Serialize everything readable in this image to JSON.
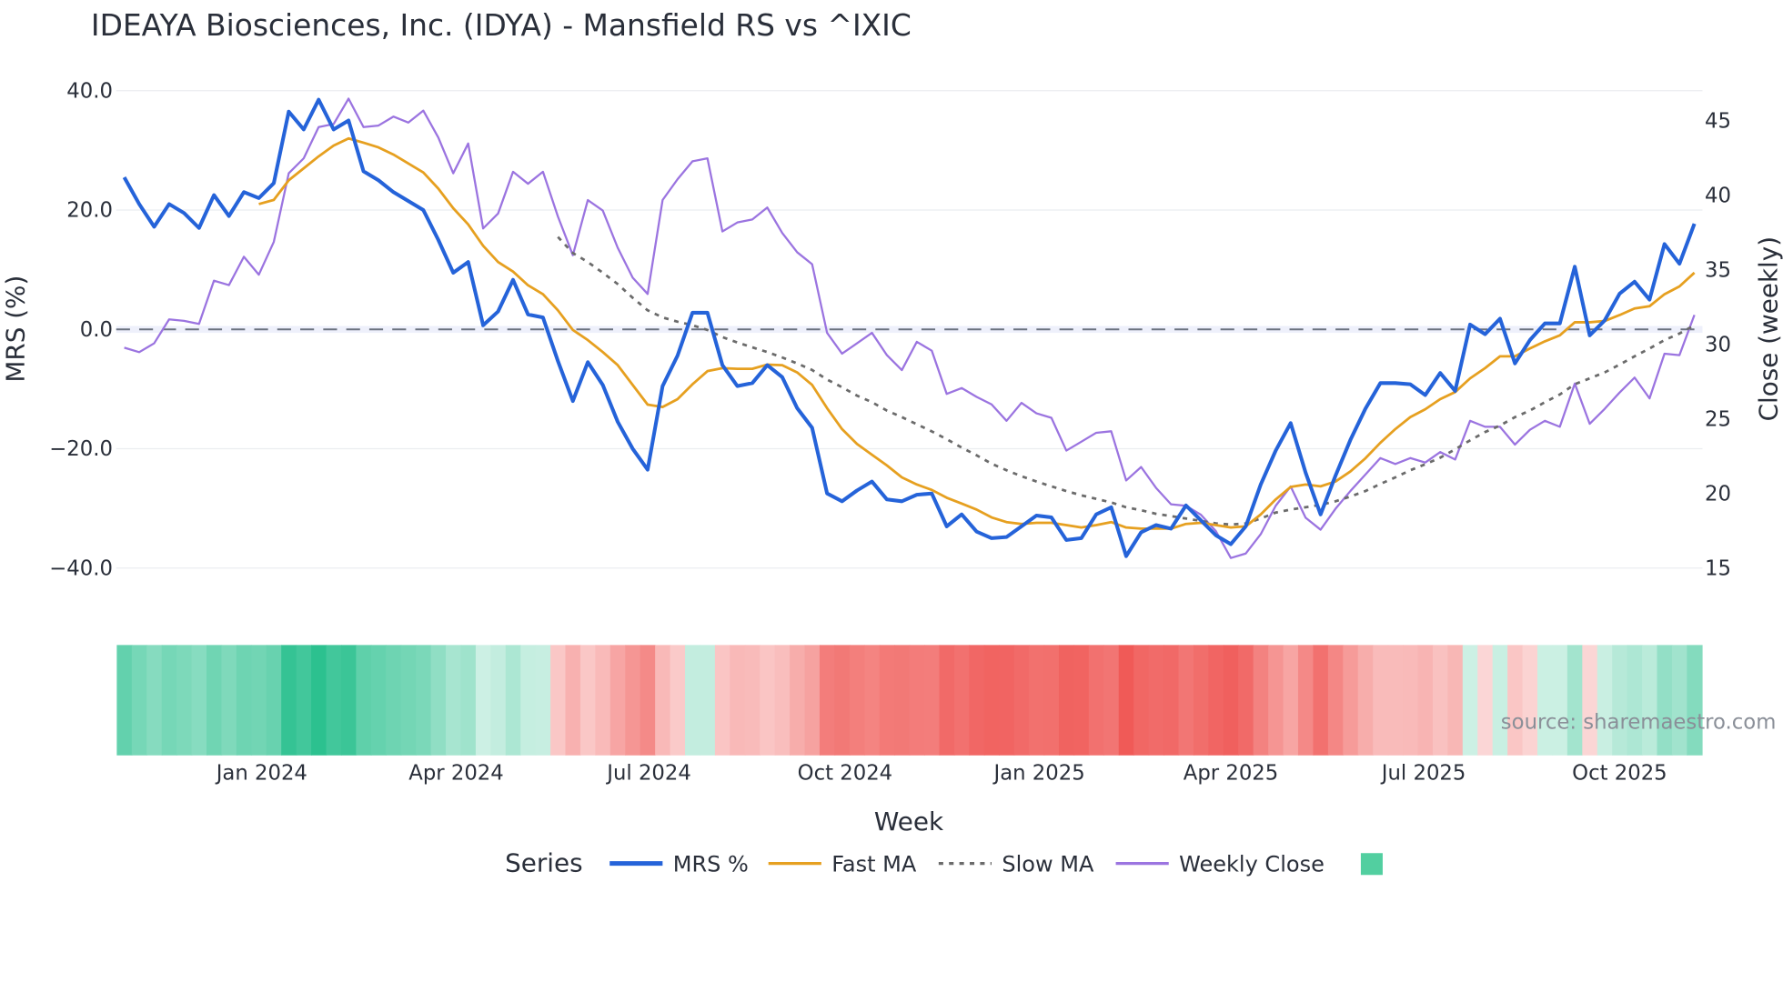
{
  "chart_data": {
    "type": "line",
    "title": "IDEAYA Biosciences, Inc. (IDYA) - Mansfield RS vs ^IXIC",
    "xlabel": "Week",
    "ylabel": "MRS (%)",
    "y2label": "Close (weekly)",
    "ylim": [
      -40,
      40
    ],
    "y2lim": [
      15,
      45
    ],
    "yticks": [
      "40.0",
      "20.0",
      "0.0",
      "−20.0",
      "−40.0"
    ],
    "ytick_values": [
      40,
      20,
      0,
      -20,
      -40
    ],
    "y2ticks": [
      "45",
      "40",
      "35",
      "30",
      "25",
      "20",
      "15"
    ],
    "y2tick_values": [
      45,
      40,
      35,
      30,
      25,
      20,
      15
    ],
    "xticks": [
      "Jan 2024",
      "Apr 2024",
      "Jul 2024",
      "Oct 2024",
      "Jan 2025",
      "Apr 2025",
      "Jul 2025",
      "Oct 2025"
    ],
    "xtick_week_index": [
      9.2,
      22.2,
      35.1,
      48.2,
      61.2,
      74,
      86.9,
      100
    ],
    "reference_line": 0,
    "grid": true,
    "legend_title": "Series",
    "legend_position": "bottom",
    "source": "source: sharemaestro.com",
    "series": [
      {
        "name": "MRS %",
        "color": "#2563d9",
        "axis": "left",
        "values": [
          25.5,
          21,
          17.2,
          21,
          19.5,
          17,
          22.5,
          19,
          23,
          22,
          24.5,
          36.5,
          33.5,
          38.5,
          33.5,
          35,
          26.5,
          25,
          23,
          21.5,
          20,
          15,
          9.5,
          11.3,
          0.7,
          3,
          8.3,
          2.5,
          2,
          -5.3,
          -12,
          -5.5,
          -9.3,
          -15.5,
          -20,
          -23.5,
          -9.5,
          -4.4,
          2.8,
          2.8,
          -6,
          -9.5,
          -9,
          -6,
          -8,
          -13.2,
          -16.5,
          -27.5,
          -28.8,
          -27,
          -25.5,
          -28.5,
          -28.8,
          -27.7,
          -27.5,
          -33,
          -31,
          -33.9,
          -35,
          -34.8,
          -33,
          -31.2,
          -31.5,
          -35.3,
          -35,
          -31,
          -29.8,
          -38,
          -34,
          -32.8,
          -33.4,
          -29.5,
          -32,
          -34.5,
          -36,
          -33,
          -26,
          -20.3,
          -15.7,
          -24,
          -31,
          -24.5,
          -18.5,
          -13.3,
          -9,
          -9,
          -9.2,
          -11,
          -7.3,
          -10.3,
          0.8,
          -0.8,
          1.8,
          -5.7,
          -1.8,
          1,
          1,
          10.5,
          -1,
          1.5,
          6,
          8,
          5,
          14.3,
          11,
          17.7
        ]
      },
      {
        "name": "Fast MA",
        "color": "#e6a020",
        "axis": "left",
        "values": [
          null,
          null,
          null,
          null,
          null,
          null,
          null,
          null,
          null,
          21,
          21.7,
          25,
          27,
          29,
          30.8,
          32,
          31.3,
          30.5,
          29.3,
          27.8,
          26.3,
          23.6,
          20.3,
          17.6,
          14,
          11.3,
          9.7,
          7.4,
          5.9,
          3.2,
          -0.1,
          -1.8,
          -3.8,
          -6,
          -9.3,
          -12.6,
          -13,
          -11.7,
          -9.2,
          -7,
          -6.5,
          -6.6,
          -6.6,
          -5.9,
          -6,
          -7.2,
          -9.3,
          -13.2,
          -16.7,
          -19.2,
          -21,
          -22.8,
          -24.8,
          -26,
          -26.9,
          -28.2,
          -29.2,
          -30.2,
          -31.5,
          -32.3,
          -32.6,
          -32.4,
          -32.4,
          -32.8,
          -33.2,
          -32.8,
          -32.3,
          -33.2,
          -33.4,
          -33.4,
          -33.4,
          -32.6,
          -32.4,
          -32.8,
          -33.2,
          -33,
          -31,
          -28.5,
          -26.4,
          -26,
          -26.3,
          -25.5,
          -23.8,
          -21.6,
          -19,
          -16.7,
          -14.7,
          -13.4,
          -11.7,
          -10.5,
          -8.2,
          -6.5,
          -4.5,
          -4.5,
          -3.2,
          -2,
          -1,
          1.2,
          1.2,
          1.4,
          2.4,
          3.5,
          3.9,
          5.9,
          7.2,
          9.5
        ]
      },
      {
        "name": "Slow MA",
        "color": "#6b6b6b",
        "axis": "left",
        "dash": true,
        "values": [
          null,
          null,
          null,
          null,
          null,
          null,
          null,
          null,
          null,
          null,
          null,
          null,
          null,
          null,
          null,
          null,
          null,
          null,
          null,
          null,
          null,
          null,
          null,
          null,
          null,
          null,
          null,
          null,
          null,
          15.5,
          12.8,
          11.3,
          9.5,
          7.6,
          5.3,
          3.2,
          2,
          1.3,
          0.7,
          -0.1,
          -1.3,
          -2.2,
          -3,
          -3.8,
          -4.7,
          -5.7,
          -6.8,
          -8.4,
          -9.7,
          -11.1,
          -12.2,
          -13.6,
          -14.7,
          -15.9,
          -17.1,
          -18.4,
          -19.8,
          -21.1,
          -22.5,
          -23.6,
          -24.6,
          -25.5,
          -26.3,
          -27.1,
          -27.8,
          -28.4,
          -29,
          -29.8,
          -30.3,
          -30.9,
          -31.3,
          -31.7,
          -32.1,
          -32.5,
          -32.7,
          -32.5,
          -31.7,
          -30.7,
          -30.2,
          -29.8,
          -29.4,
          -28.8,
          -28,
          -27.1,
          -25.9,
          -24.8,
          -23.6,
          -22.6,
          -21.5,
          -20.1,
          -18.6,
          -17.2,
          -16.1,
          -14.7,
          -13.6,
          -12.2,
          -10.9,
          -9.2,
          -8.2,
          -7.2,
          -5.9,
          -4.5,
          -3.2,
          -1.8,
          -0.7,
          0.7
        ]
      },
      {
        "name": "Weekly Close",
        "color": "#9b74e0",
        "axis": "right",
        "values": [
          29.7,
          29.4,
          30,
          31.6,
          31.5,
          31.3,
          34.2,
          33.9,
          35.8,
          34.6,
          36.8,
          41.4,
          42.4,
          44.5,
          44.7,
          46.4,
          44.5,
          44.6,
          45.2,
          44.8,
          45.6,
          43.8,
          41.4,
          43.4,
          37.7,
          38.7,
          41.5,
          40.7,
          41.5,
          38.5,
          35.9,
          39.6,
          38.9,
          36.4,
          34.4,
          33.3,
          39.6,
          41,
          42.2,
          42.4,
          37.5,
          38.1,
          38.3,
          39.1,
          37.4,
          36.1,
          35.3,
          30.7,
          29.3,
          30,
          30.7,
          29.2,
          28.2,
          30.1,
          29.5,
          26.6,
          27,
          26.4,
          25.9,
          24.8,
          26,
          25.3,
          25,
          22.8,
          23.4,
          24,
          24.1,
          20.8,
          21.7,
          20.3,
          19.2,
          19.1,
          18.5,
          17.4,
          15.6,
          15.9,
          17.2,
          19.1,
          20.4,
          18.3,
          17.5,
          18.9,
          20.1,
          21.2,
          22.3,
          21.9,
          22.3,
          22,
          22.7,
          22.2,
          24.8,
          24.4,
          24.4,
          23.2,
          24.2,
          24.8,
          24.4,
          27.3,
          24.6,
          25.6,
          26.7,
          27.7,
          26.3,
          29.3,
          29.2,
          31.9
        ]
      }
    ],
    "heatmap": {
      "based_on": "MRS %",
      "positive_color": "#26bf8c",
      "negative_color": "#ef5350"
    }
  },
  "colors": {
    "legend_swatch": "#52cfa0",
    "zero_line": "#6b7280",
    "grid": "#ebedf0"
  }
}
